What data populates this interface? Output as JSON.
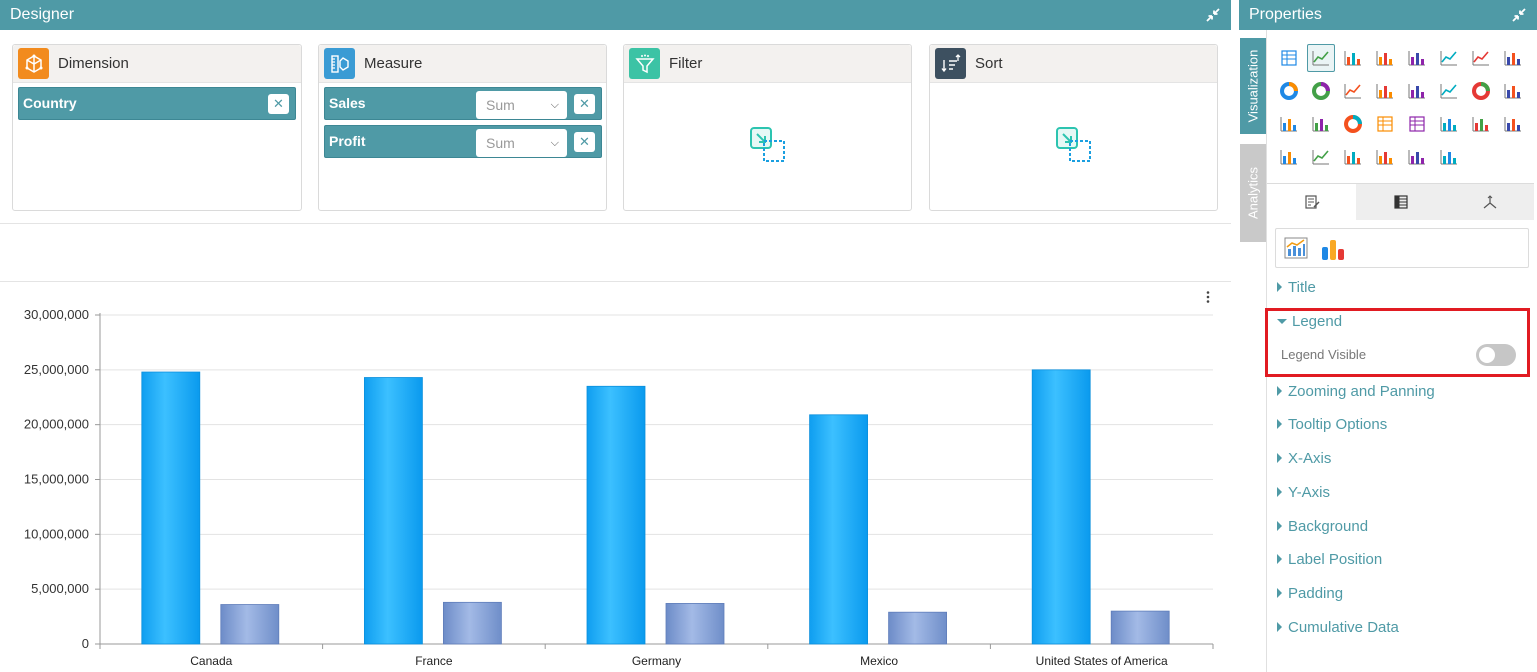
{
  "designer": {
    "title": "Designer",
    "wells": {
      "dimension": {
        "label": "Dimension",
        "fields": [
          "Country"
        ]
      },
      "measure": {
        "label": "Measure",
        "fields": [
          {
            "name": "Sales",
            "aggregation": "Sum"
          },
          {
            "name": "Profit",
            "aggregation": "Sum"
          }
        ]
      },
      "filter": {
        "label": "Filter"
      },
      "sort": {
        "label": "Sort"
      }
    }
  },
  "chart_data": {
    "type": "bar",
    "categories": [
      "Canada",
      "France",
      "Germany",
      "Mexico",
      "United States of America"
    ],
    "series": [
      {
        "values": [
          24800000,
          24300000,
          23500000,
          20900000,
          25000000
        ],
        "color": "#1ea7f5"
      },
      {
        "values": [
          3600000,
          3800000,
          3700000,
          2900000,
          3000000
        ],
        "color": "#7f9cd0"
      }
    ],
    "yticks": [
      "0",
      "5,000,000",
      "10,000,000",
      "15,000,000",
      "20,000,000",
      "25,000,000",
      "30,000,000"
    ],
    "ylim": [
      0,
      30000000
    ],
    "grid": true,
    "legend": "none"
  },
  "properties": {
    "title": "Properties",
    "side_tabs": [
      "Visualization",
      "Analytics"
    ],
    "sections": {
      "title": "Title",
      "legend": "Legend",
      "legend_visible": "Legend Visible",
      "zooming": "Zooming and Panning",
      "tooltip": "Tooltip Options",
      "xaxis": "X-Axis",
      "yaxis": "Y-Axis",
      "background": "Background",
      "label_position": "Label Position",
      "padding": "Padding",
      "cumulative": "Cumulative Data"
    },
    "legend_visible_on": false
  },
  "colors": {
    "header": "#4f9aa6",
    "bar_primary": "#1ea7f5",
    "bar_secondary": "#7f9cd0",
    "highlight": "#e11b22"
  }
}
